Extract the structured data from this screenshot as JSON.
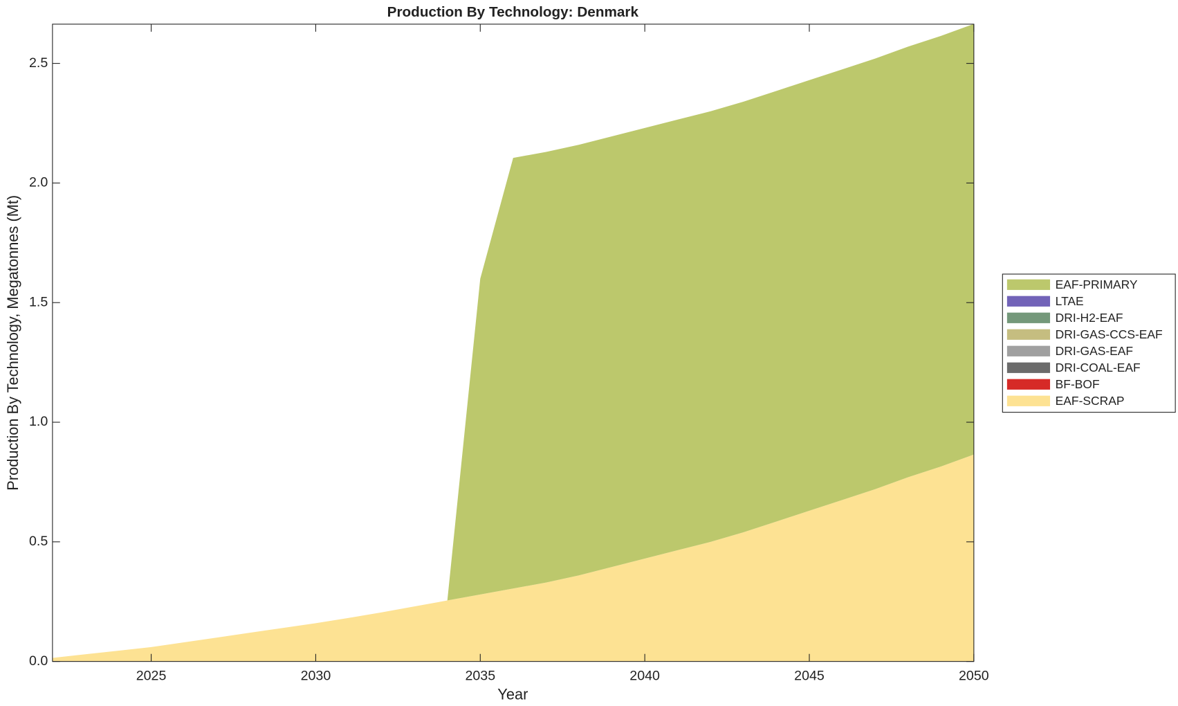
{
  "chart_data": {
    "type": "stacked_area",
    "title": "Production By Technology: Denmark",
    "xlabel": "Year",
    "ylabel": "Production By Technology, Megatonnes (Mt)",
    "x": [
      2022,
      2023,
      2024,
      2025,
      2026,
      2027,
      2028,
      2029,
      2030,
      2031,
      2032,
      2033,
      2034,
      2035,
      2036,
      2037,
      2038,
      2039,
      2040,
      2041,
      2042,
      2043,
      2044,
      2045,
      2046,
      2047,
      2048,
      2049,
      2050
    ],
    "xlim": [
      2022,
      2050
    ],
    "xticks": [
      2025,
      2030,
      2035,
      2040,
      2045,
      2050
    ],
    "ylim": [
      0,
      2.664
    ],
    "yticks": [
      {
        "value": 0,
        "label": "0.0"
      },
      0.5,
      {
        "value": 1,
        "label": "1.0"
      },
      1.5,
      {
        "value": 2,
        "label": "2.0"
      },
      2.5
    ],
    "legend_position": "right",
    "series": [
      {
        "name": "EAF-SCRAP",
        "color": "#fde293",
        "values": [
          0.015,
          0.03,
          0.045,
          0.06,
          0.08,
          0.1,
          0.12,
          0.14,
          0.16,
          0.182,
          0.205,
          0.23,
          0.255,
          0.28,
          0.305,
          0.33,
          0.36,
          0.395,
          0.43,
          0.465,
          0.5,
          0.54,
          0.585,
          0.63,
          0.675,
          0.72,
          0.77,
          0.815,
          0.865
        ]
      },
      {
        "name": "BF-BOF",
        "color": "#d62a27",
        "values": [
          0,
          0,
          0,
          0,
          0,
          0,
          0,
          0,
          0,
          0,
          0,
          0,
          0,
          0,
          0,
          0,
          0,
          0,
          0,
          0,
          0,
          0,
          0,
          0,
          0,
          0,
          0,
          0,
          0
        ]
      },
      {
        "name": "DRI-COAL-EAF",
        "color": "#6b6b6b",
        "values": [
          0,
          0,
          0,
          0,
          0,
          0,
          0,
          0,
          0,
          0,
          0,
          0,
          0,
          0,
          0,
          0,
          0,
          0,
          0,
          0,
          0,
          0,
          0,
          0,
          0,
          0,
          0,
          0,
          0
        ]
      },
      {
        "name": "DRI-GAS-EAF",
        "color": "#a0a0a0",
        "values": [
          0,
          0,
          0,
          0,
          0,
          0,
          0,
          0,
          0,
          0,
          0,
          0,
          0,
          0,
          0,
          0,
          0,
          0,
          0,
          0,
          0,
          0,
          0,
          0,
          0,
          0,
          0,
          0,
          0
        ]
      },
      {
        "name": "DRI-GAS-CCS-EAF",
        "color": "#c5bd80",
        "values": [
          0,
          0,
          0,
          0,
          0,
          0,
          0,
          0,
          0,
          0,
          0,
          0,
          0,
          0,
          0,
          0,
          0,
          0,
          0,
          0,
          0,
          0,
          0,
          0,
          0,
          0,
          0,
          0,
          0
        ]
      },
      {
        "name": "DRI-H2-EAF",
        "color": "#74987a",
        "values": [
          0,
          0,
          0,
          0,
          0,
          0,
          0,
          0,
          0,
          0,
          0,
          0,
          0,
          0,
          0,
          0,
          0,
          0,
          0,
          0,
          0,
          0,
          0,
          0,
          0,
          0,
          0,
          0,
          0
        ]
      },
      {
        "name": "LTAE",
        "color": "#7263b8",
        "values": [
          0,
          0,
          0,
          0,
          0,
          0,
          0,
          0,
          0,
          0,
          0,
          0,
          0,
          0,
          0,
          0,
          0,
          0,
          0,
          0,
          0,
          0,
          0,
          0,
          0,
          0,
          0,
          0,
          0
        ]
      },
      {
        "name": "EAF-PRIMARY",
        "color": "#bcc86c",
        "values": [
          0,
          0,
          0,
          0,
          0,
          0,
          0,
          0,
          0,
          0,
          0,
          0,
          0,
          1.32,
          1.8,
          1.8,
          1.8,
          1.8,
          1.8,
          1.8,
          1.8,
          1.8,
          1.8,
          1.8,
          1.8,
          1.8,
          1.8,
          1.8,
          1.8
        ]
      }
    ]
  }
}
